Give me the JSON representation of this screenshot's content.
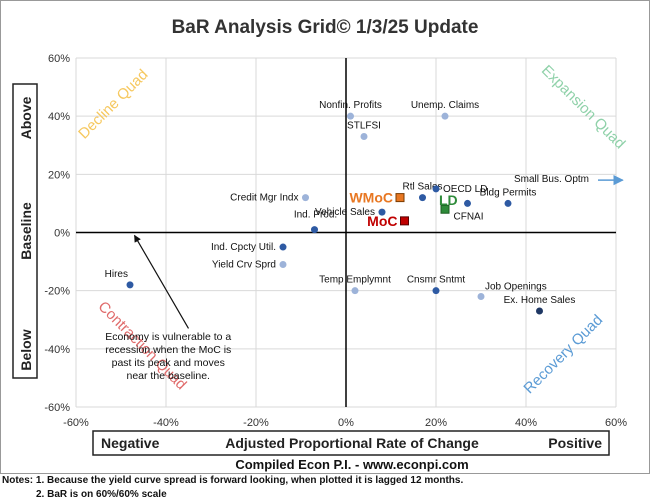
{
  "chart_data": {
    "type": "scatter",
    "title": "BaR Analysis Grid© 1/3/25 Update",
    "xlim": [
      -60,
      60
    ],
    "ylim": [
      -60,
      60
    ],
    "x_ticks": [
      "-60%",
      "-40%",
      "-20%",
      "0%",
      "20%",
      "40%",
      "60%"
    ],
    "y_ticks": [
      "60%",
      "40%",
      "20%",
      "0%",
      "-20%",
      "-40%",
      "-60%"
    ],
    "grid": true,
    "xlabel": "Adjusted Proportional Rate of Change",
    "xlabel_left": "Negative",
    "xlabel_right": "Positive",
    "ylabel_parts": [
      "Above",
      "Baseline",
      "Below"
    ],
    "quadrants": {
      "top_left": {
        "label": "Decline Quad",
        "color": "#f6c85f"
      },
      "top_right": {
        "label": "Expansion Quad",
        "color": "#8fd1a9"
      },
      "bottom_left": {
        "label": "Contraction Quad",
        "color": "#e06b6b"
      },
      "bottom_right": {
        "label": "Recovery Quad",
        "color": "#5b9bd5"
      }
    },
    "points": [
      {
        "label": "Nonfin. Profits",
        "x": 1,
        "y": 40,
        "color": "#9db3d9",
        "label_pos": "above"
      },
      {
        "label": "Unemp. Claims",
        "x": 22,
        "y": 40,
        "color": "#9db3d9",
        "label_pos": "above"
      },
      {
        "label": "STLFSI",
        "x": 4,
        "y": 33,
        "color": "#9db3d9",
        "label_pos": "above"
      },
      {
        "label": "Credit Mgr Indx",
        "x": -9,
        "y": 12,
        "color": "#9db3d9",
        "label_pos": "left"
      },
      {
        "label": "Rtl Sales",
        "x": 17,
        "y": 12,
        "color": "#2e5aa3",
        "label_pos": "above"
      },
      {
        "label": "OECD LD",
        "x": 20,
        "y": 15,
        "color": "#2e5aa3",
        "label_pos": "right"
      },
      {
        "label": "Bldg Permits",
        "x": 36,
        "y": 10,
        "color": "#2e5aa3",
        "label_pos": "above"
      },
      {
        "label": "CFNAI",
        "x": 27,
        "y": 10,
        "color": "#2e5aa3",
        "label_pos": "below"
      },
      {
        "label": "Vehicle Sales",
        "x": 8,
        "y": 7,
        "color": "#2e5aa3",
        "label_pos": "left"
      },
      {
        "label": "Ind. Prod.",
        "x": -7,
        "y": 1,
        "color": "#2e5aa3",
        "label_pos": "right-above"
      },
      {
        "label": "Ind. Cpcty Util.",
        "x": -14,
        "y": -5,
        "color": "#2e5aa3",
        "label_pos": "left"
      },
      {
        "label": "Yield Crv Sprd",
        "x": -14,
        "y": -11,
        "color": "#9db3d9",
        "label_pos": "left"
      },
      {
        "label": "Hires",
        "x": -48,
        "y": -18,
        "color": "#2e5aa3",
        "label_pos": "left-above"
      },
      {
        "label": "Temp Emplymnt",
        "x": 2,
        "y": -20,
        "color": "#9db3d9",
        "label_pos": "above"
      },
      {
        "label": "Cnsmr Sntmt",
        "x": 20,
        "y": -20,
        "color": "#2e5aa3",
        "label_pos": "above"
      },
      {
        "label": "Job Openings",
        "x": 30,
        "y": -22,
        "color": "#9db3d9",
        "label_pos": "right-above"
      },
      {
        "label": "Ex. Home Sales",
        "x": 43,
        "y": -27,
        "color": "#1f3864",
        "label_pos": "above"
      }
    ],
    "offscale": {
      "label": "Small Bus. Optm",
      "x": 60,
      "y": 18,
      "color": "#5b9bd5"
    },
    "highlights": [
      {
        "label": "WMoC",
        "x": 12,
        "y": 12,
        "color": "#e87722",
        "stroke": "#7a3b00"
      },
      {
        "label": "MoC",
        "x": 13,
        "y": 4,
        "color": "#c00000",
        "stroke": "#5a0000"
      },
      {
        "label": "LD",
        "x": 22,
        "y": 8,
        "color": "#2e8b3a",
        "stroke": "#1b5e20"
      }
    ],
    "annotation": {
      "text_lines": [
        "Economy is vulnerable to a",
        "recession when the MoC is",
        "past its peak and moves",
        "near the baseline."
      ],
      "arrow_from": [
        -35,
        -33
      ],
      "arrow_to": [
        -47,
        -1
      ]
    }
  },
  "credit": "Compiled Econ P.I. - www.econpi.com",
  "notes": {
    "line1": "Notes: 1. Because the yield curve spread is forward looking, when plotted it is lagged 12 months.",
    "line2": "2. BaR is on 60%/60% scale"
  }
}
